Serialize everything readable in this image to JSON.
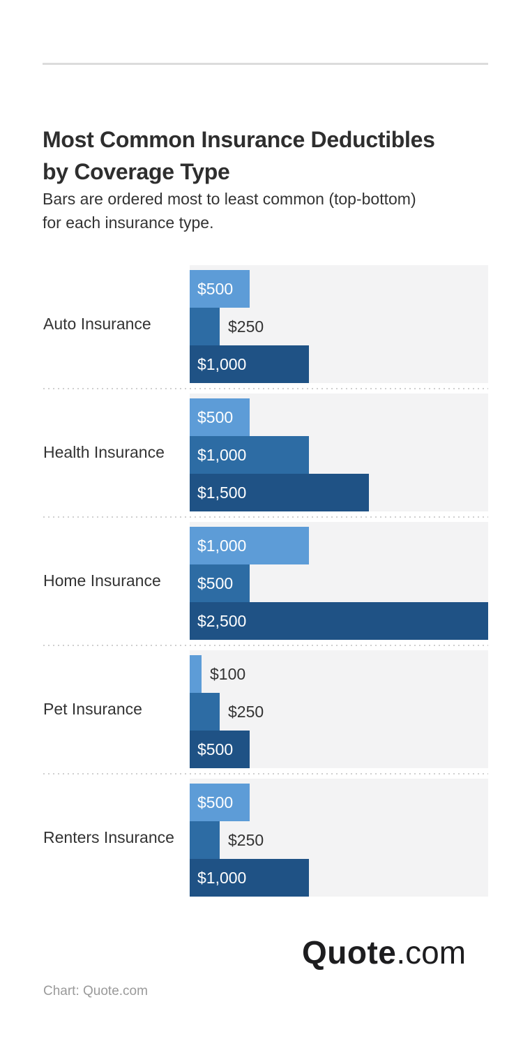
{
  "header": {
    "title": "Most Common Insurance Deductibles by Coverage Type",
    "title_lines": [
      "Most Common Insurance Deductibles",
      "by Coverage Type"
    ],
    "subtitle": "Bars are ordered most to least common (top-bottom) for each insurance type.",
    "subtitle_lines": [
      "Bars are ordered most to least common (top-bottom)",
      "for each insurance type."
    ]
  },
  "chart_data": {
    "type": "bar",
    "orientation": "horizontal",
    "unit": "USD",
    "title": "Most Common Insurance Deductibles by Coverage Type",
    "subtitle": "Bars are ordered most to least common (top-bottom) for each insurance type.",
    "legend": "none",
    "x_axis": {
      "min": 0,
      "max": 2500,
      "visible": false,
      "gridlines": false
    },
    "categories": [
      "Auto Insurance",
      "Health Insurance",
      "Home Insurance",
      "Pet Insurance",
      "Renters Insurance"
    ],
    "groups": [
      {
        "category": "Auto Insurance",
        "bars": [
          {
            "rank": 1,
            "value": 500,
            "label": "$500",
            "label_position": "inside"
          },
          {
            "rank": 2,
            "value": 250,
            "label": "$250",
            "label_position": "outside"
          },
          {
            "rank": 3,
            "value": 1000,
            "label": "$1,000",
            "label_position": "inside"
          }
        ]
      },
      {
        "category": "Health Insurance",
        "bars": [
          {
            "rank": 1,
            "value": 500,
            "label": "$500",
            "label_position": "inside"
          },
          {
            "rank": 2,
            "value": 1000,
            "label": "$1,000",
            "label_position": "inside"
          },
          {
            "rank": 3,
            "value": 1500,
            "label": "$1,500",
            "label_position": "inside"
          }
        ]
      },
      {
        "category": "Home Insurance",
        "bars": [
          {
            "rank": 1,
            "value": 1000,
            "label": "$1,000",
            "label_position": "inside"
          },
          {
            "rank": 2,
            "value": 500,
            "label": "$500",
            "label_position": "inside"
          },
          {
            "rank": 3,
            "value": 2500,
            "label": "$2,500",
            "label_position": "inside"
          }
        ]
      },
      {
        "category": "Pet Insurance",
        "bars": [
          {
            "rank": 1,
            "value": 100,
            "label": "$100",
            "label_position": "outside"
          },
          {
            "rank": 2,
            "value": 250,
            "label": "$250",
            "label_position": "outside"
          },
          {
            "rank": 3,
            "value": 500,
            "label": "$500",
            "label_position": "inside"
          }
        ]
      },
      {
        "category": "Renters Insurance",
        "bars": [
          {
            "rank": 1,
            "value": 500,
            "label": "$500",
            "label_position": "inside"
          },
          {
            "rank": 2,
            "value": 250,
            "label": "$250",
            "label_position": "outside"
          },
          {
            "rank": 3,
            "value": 1000,
            "label": "$1,000",
            "label_position": "inside"
          }
        ]
      }
    ],
    "colors": {
      "rank_1": "#5d9cd7",
      "rank_2": "#2d6ca4",
      "rank_3": "#1f5285",
      "panel_background": "#f3f3f4"
    }
  },
  "footer": {
    "logo": {
      "bold": "Quote",
      "suffix": ".com"
    },
    "source": "Chart: Quote.com"
  }
}
